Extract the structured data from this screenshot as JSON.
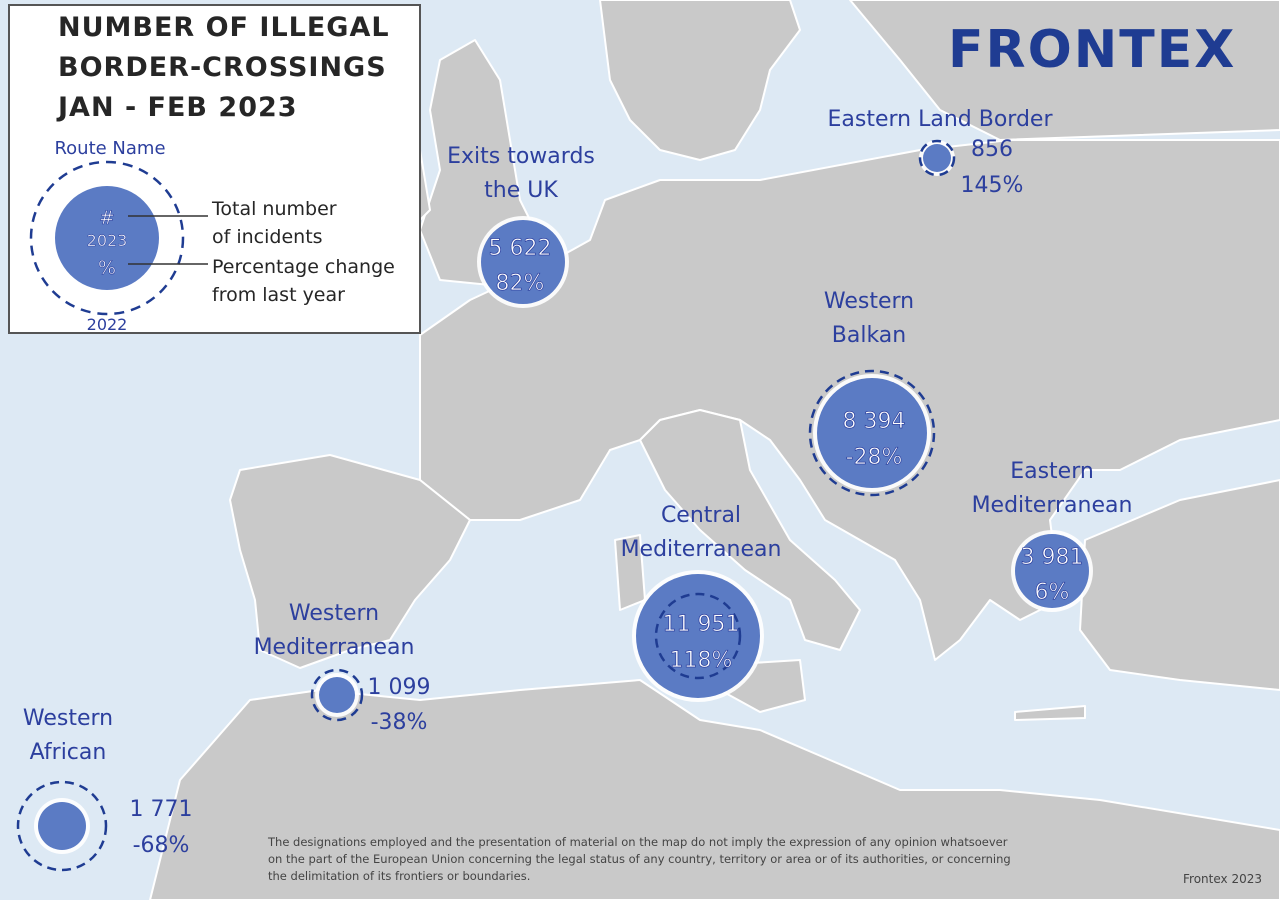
{
  "legend": {
    "title_lines": [
      "NUMBER OF ILLEGAL",
      "BORDER-CROSSINGS",
      "JAN - FEB 2023"
    ],
    "route_name_label": "Route Name",
    "number_symbol": "#",
    "year_current": "2023",
    "percent_symbol": "%",
    "year_previous": "2022",
    "total_label_lines": [
      "Total number",
      "of incidents"
    ],
    "change_label_lines": [
      "Percentage change",
      "from last year"
    ]
  },
  "logo": "FRONTEX",
  "routes": [
    {
      "name_lines": [
        "Eastern Land Border"
      ],
      "count": "856",
      "change": "145%"
    },
    {
      "name_lines": [
        "Exits towards",
        "the UK"
      ],
      "count": "5 622",
      "change": "82%"
    },
    {
      "name_lines": [
        "Western",
        "Balkan"
      ],
      "count": "8 394",
      "change": "-28%"
    },
    {
      "name_lines": [
        "Eastern",
        "Mediterranean"
      ],
      "count": "3 981",
      "change": "6%"
    },
    {
      "name_lines": [
        "Central",
        "Mediterranean"
      ],
      "count": "11 951",
      "change": "118%"
    },
    {
      "name_lines": [
        "Western",
        "Mediterranean"
      ],
      "count": "1 099",
      "change": "-38%"
    },
    {
      "name_lines": [
        "Western",
        "African"
      ],
      "count": "1 771",
      "change": "-68%"
    }
  ],
  "disclaimer_lines": [
    "The designations employed and the presentation of material on the map do not imply the expression of any opinion whatsoever",
    "on the part of the European Union concerning the legal status of any country, territory or area or of its authorities, or concerning",
    "the delimitation of its frontiers or boundaries."
  ],
  "credit": "Frontex 2023",
  "colors": {
    "sea": "#dde9f4",
    "land": "#c9c9c9",
    "border": "#ffffff",
    "bubble_fill": "#5b7bc4",
    "bubble_halo": "#ffffff",
    "dash": "#1f3c92",
    "route_text": "#2c3f9e",
    "logo": "#1f3c92"
  }
}
